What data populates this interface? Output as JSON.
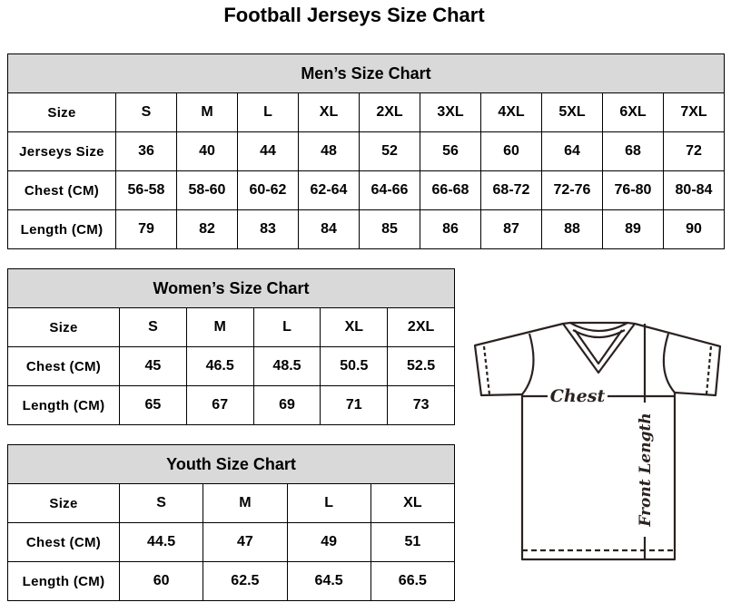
{
  "title": "Football Jerseys Size Chart",
  "men": {
    "heading": "Men’s Size Chart",
    "rows": [
      {
        "label": "Size",
        "values": [
          "S",
          "M",
          "L",
          "XL",
          "2XL",
          "3XL",
          "4XL",
          "5XL",
          "6XL",
          "7XL"
        ]
      },
      {
        "label": "Jerseys Size",
        "values": [
          "36",
          "40",
          "44",
          "48",
          "52",
          "56",
          "60",
          "64",
          "68",
          "72"
        ]
      },
      {
        "label": "Chest (CM)",
        "values": [
          "56-58",
          "58-60",
          "60-62",
          "62-64",
          "64-66",
          "66-68",
          "68-72",
          "72-76",
          "76-80",
          "80-84"
        ]
      },
      {
        "label": "Length (CM)",
        "values": [
          "79",
          "82",
          "83",
          "84",
          "85",
          "86",
          "87",
          "88",
          "89",
          "90"
        ]
      }
    ]
  },
  "women": {
    "heading": "Women’s Size Chart",
    "rows": [
      {
        "label": "Size",
        "values": [
          "S",
          "M",
          "L",
          "XL",
          "2XL"
        ]
      },
      {
        "label": "Chest (CM)",
        "values": [
          "45",
          "46.5",
          "48.5",
          "50.5",
          "52.5"
        ]
      },
      {
        "label": "Length (CM)",
        "values": [
          "65",
          "67",
          "69",
          "71",
          "73"
        ]
      }
    ]
  },
  "youth": {
    "heading": "Youth Size Chart",
    "rows": [
      {
        "label": "Size",
        "values": [
          "S",
          "M",
          "L",
          "XL"
        ]
      },
      {
        "label": "Chest (CM)",
        "values": [
          "44.5",
          "47",
          "49",
          "51"
        ]
      },
      {
        "label": "Length (CM)",
        "values": [
          "60",
          "62.5",
          "64.5",
          "66.5"
        ]
      }
    ]
  },
  "diagram": {
    "chest_label": "Chest",
    "length_label": "Front Length"
  },
  "colors": {
    "header_bg": "#d9d9d9",
    "line": "#2b2220"
  }
}
